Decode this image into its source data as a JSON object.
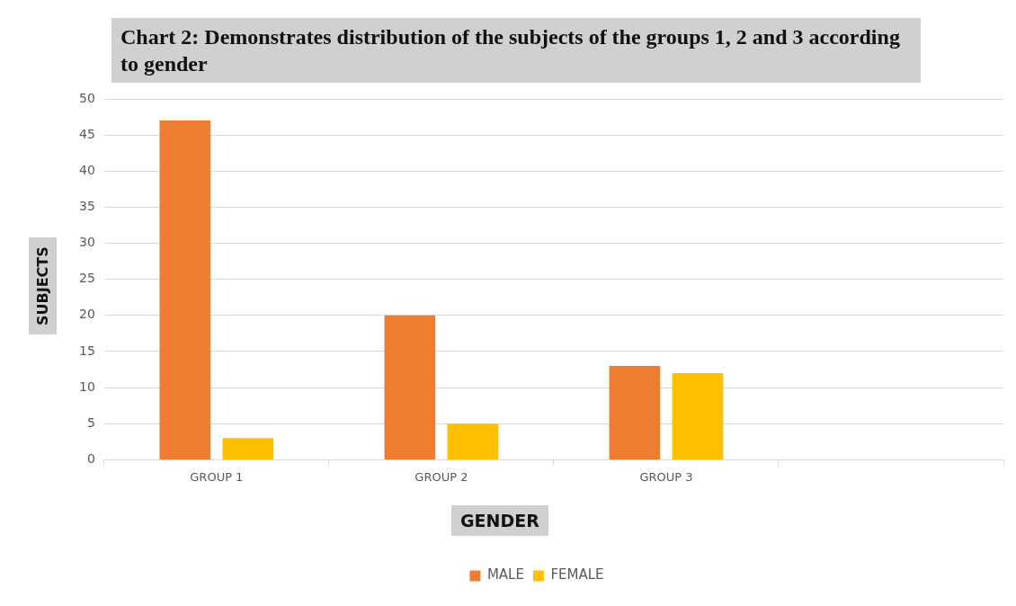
{
  "chart_data": {
    "type": "bar",
    "title": "Chart 2: Demonstrates distribution of the subjects of the groups 1, 2 and 3 according to gender",
    "xlabel": "GENDER",
    "ylabel": "SUBJECTS",
    "categories": [
      "GROUP 1",
      "GROUP 2",
      "GROUP 3",
      null
    ],
    "series": [
      {
        "name": "MALE",
        "color": "#ed7d31",
        "values": [
          47,
          20,
          13,
          null
        ]
      },
      {
        "name": "FEMALE",
        "color": "#ffc000",
        "values": [
          3,
          5,
          12,
          null
        ]
      }
    ],
    "ylim": [
      0,
      50
    ],
    "yticks": [
      0,
      5,
      10,
      15,
      20,
      25,
      30,
      35,
      40,
      45,
      50
    ],
    "grid": "y",
    "legend": "bottom"
  }
}
